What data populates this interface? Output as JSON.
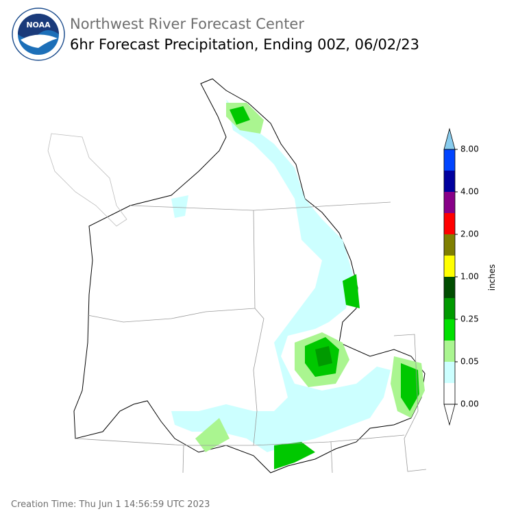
{
  "logo": {
    "label": "NOAA"
  },
  "header": {
    "title": "Northwest River Forecast Center",
    "subtitle": "6hr Forecast Precipitation, Ending 00Z, 06/02/23"
  },
  "colorbar": {
    "label": "inches",
    "colors": [
      "#ffffff",
      "#ccffff",
      "#aaf590",
      "#00e000",
      "#009a00",
      "#004d00",
      "#ffff00",
      "#7f7f00",
      "#ff0000",
      "#880088",
      "#00009e",
      "#0044ff"
    ],
    "under_color": "#ffffff",
    "over_color": "#88ccee",
    "ticks": [
      {
        "value": 0,
        "label": "0.00"
      },
      {
        "value": 0.05,
        "label": "0.05"
      },
      {
        "value": 0.25,
        "label": "0.25"
      },
      {
        "value": 1,
        "label": "1.00"
      },
      {
        "value": 2,
        "label": "2.00"
      },
      {
        "value": 4,
        "label": "4.00"
      },
      {
        "value": 8,
        "label": "8.00"
      }
    ]
  },
  "footer": {
    "creation_time": "Creation Time: Thu Jun 1 14:56:59 UTC 2023"
  }
}
